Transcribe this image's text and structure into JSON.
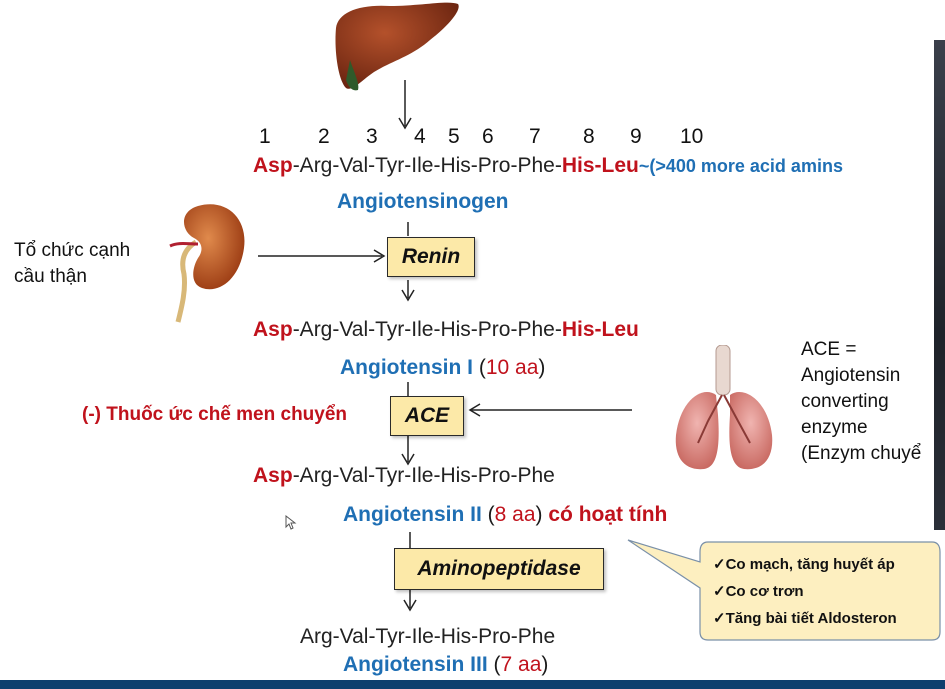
{
  "positions": [
    "1",
    "2",
    "3",
    "4",
    "5",
    "6",
    "7",
    "8",
    "9",
    "10"
  ],
  "seq1": {
    "start": "Asp",
    "middle": "-Arg-Val-Tyr-Ile-His-Pro-Phe-",
    "end": "His-Leu",
    "tail": "~(>400 more acid amins"
  },
  "angiotensinogen": "Angiotensinogen",
  "kidney_label": {
    "line1": "Tổ chức cạnh",
    "line2": "cầu thận"
  },
  "renin": "Renin",
  "seq2": {
    "start": "Asp",
    "middle": "-Arg-Val-Tyr-Ile-His-Pro-Phe-",
    "end": "His-Leu"
  },
  "ang1": {
    "name": "Angiotensin I",
    "open": " (",
    "count": "10 aa",
    "close": ")"
  },
  "ace_inhibitor": "(-) Thuốc ức chế men chuyển",
  "ace": "ACE",
  "ace_def": {
    "l1": "ACE =",
    "l2": "Angiotensin",
    "l3": "converting",
    "l4": "enzyme",
    "l5": "(Enzym chuyể"
  },
  "seq3": {
    "start": "Asp",
    "rest": "-Arg-Val-Tyr-Ile-His-Pro-Phe"
  },
  "ang2": {
    "name": "Angiotensin II",
    "open": " (",
    "count": "8 aa",
    "close": ") ",
    "active": "có hoạt tính"
  },
  "aminopeptidase": "Aminopeptidase",
  "effects": [
    "✓Co mạch, tăng huyết áp",
    "✓Co cơ trơn",
    "✓Tăng bài tiết Aldosteron"
  ],
  "seq4": "Arg-Val-Tyr-Ile-His-Pro-Phe",
  "ang3": {
    "name": "Angiotensin III",
    "open": " (",
    "count": "7 aa",
    "close": ")"
  },
  "colors": {
    "red": "#c0121c",
    "blue": "#1f6fb4",
    "box": "#fce9a8",
    "callout": "#fdefc0"
  }
}
